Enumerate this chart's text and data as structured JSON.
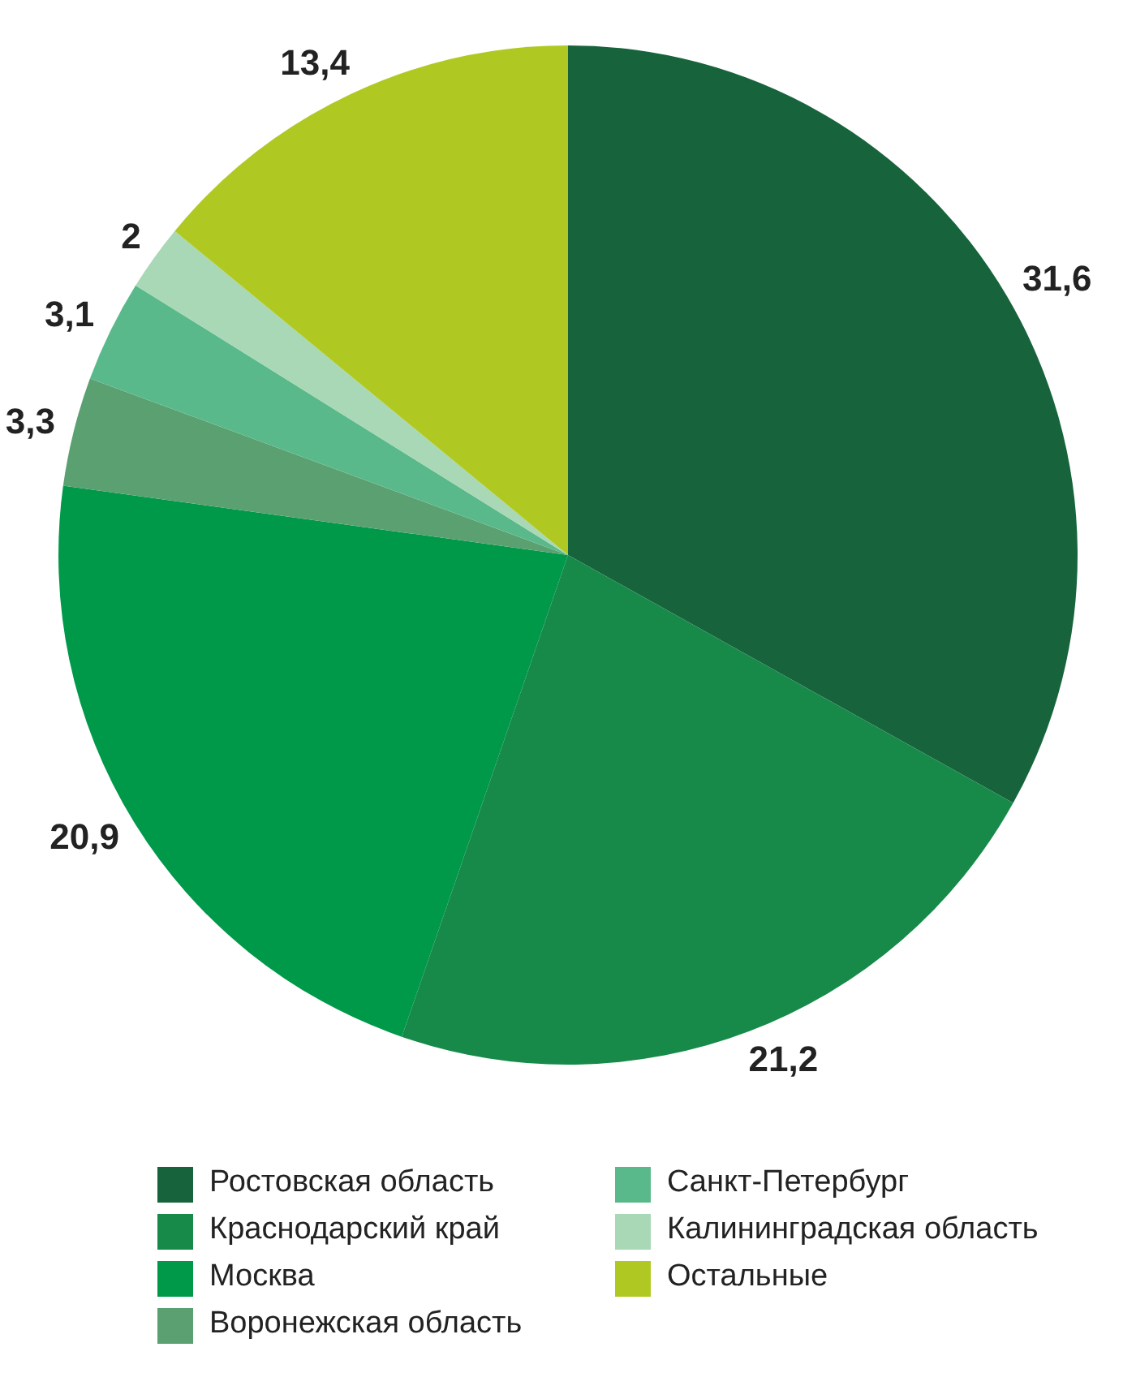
{
  "chart_data": {
    "type": "pie",
    "categories": [
      "Ростовская область",
      "Краснодарский край",
      "Москва",
      "Воронежская область",
      "Санкт-Петербург",
      "Калининградская область",
      "Остальные"
    ],
    "values": [
      31.6,
      21.2,
      20.9,
      3.3,
      3.1,
      2,
      13.4
    ],
    "value_labels": [
      "31,6",
      "21,2",
      "20,9",
      "3,3",
      "3,1",
      "2",
      "13,4"
    ],
    "colors": [
      "#17643c",
      "#178a4a",
      "#00994a",
      "#5aa070",
      "#5ab98a",
      "#a8d8b5",
      "#b0c922"
    ],
    "legend": "bottom"
  }
}
